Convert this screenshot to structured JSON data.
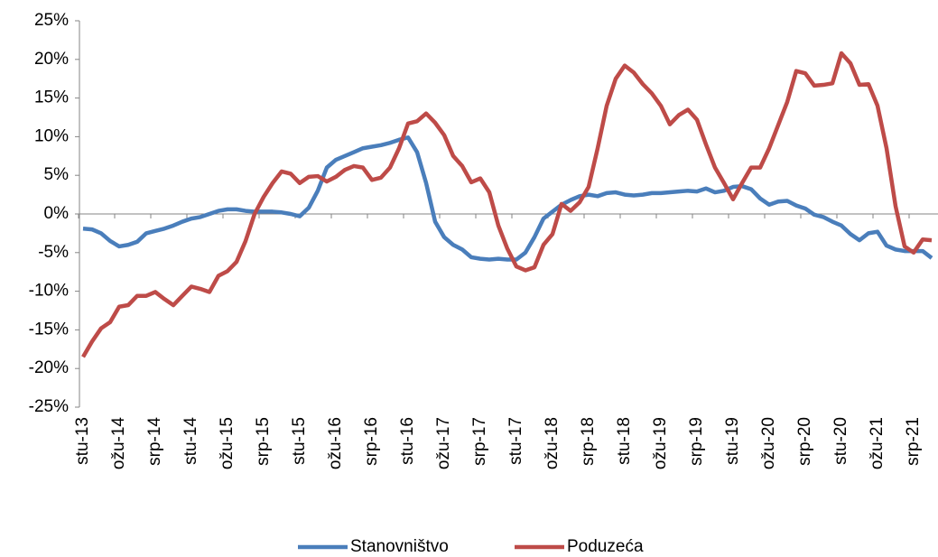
{
  "chart_data": {
    "type": "line",
    "categories": [
      "stu-13",
      null,
      null,
      null,
      "ožu-14",
      null,
      null,
      null,
      "srp-14",
      null,
      null,
      null,
      "stu-14",
      null,
      null,
      null,
      "ožu-15",
      null,
      null,
      null,
      "srp-15",
      null,
      null,
      null,
      "stu-15",
      null,
      null,
      null,
      "ožu-16",
      null,
      null,
      null,
      "srp-16",
      null,
      null,
      null,
      "stu-16",
      null,
      null,
      null,
      "ožu-17",
      null,
      null,
      null,
      "srp-17",
      null,
      null,
      null,
      "stu-17",
      null,
      null,
      null,
      "ožu-18",
      null,
      null,
      null,
      "srp-18",
      null,
      null,
      null,
      "stu-18",
      null,
      null,
      null,
      "ožu-19",
      null,
      null,
      null,
      "srp-19",
      null,
      null,
      null,
      "stu-19",
      null,
      null,
      null,
      "ožu-20",
      null,
      null,
      null,
      "srp-20",
      null,
      null,
      null,
      "stu-20",
      null,
      null,
      null,
      "ožu-21",
      null,
      null,
      null,
      "srp-21",
      null,
      null
    ],
    "series": [
      {
        "name": "Stanovništvo",
        "color": "#4a7ebb",
        "values": [
          -1.9,
          -2.0,
          -2.5,
          -3.5,
          -4.2,
          -4.0,
          -3.6,
          -2.5,
          -2.2,
          -1.9,
          -1.5,
          -1.0,
          -0.6,
          -0.4,
          0.0,
          0.4,
          0.6,
          0.6,
          0.4,
          0.3,
          0.3,
          0.3,
          0.2,
          0.0,
          -0.3,
          0.8,
          3.0,
          6.0,
          7.0,
          7.5,
          8.0,
          8.5,
          8.7,
          8.9,
          9.2,
          9.6,
          9.9,
          8.0,
          4.0,
          -1.0,
          -3.0,
          -4.0,
          -4.6,
          -5.6,
          -5.8,
          -5.9,
          -5.8,
          -5.9,
          -5.9,
          -5.0,
          -3.0,
          -0.6,
          0.3,
          1.2,
          1.8,
          2.3,
          2.5,
          2.3,
          2.7,
          2.8,
          2.5,
          2.4,
          2.5,
          2.7,
          2.7,
          2.8,
          2.9,
          3.0,
          2.9,
          3.3,
          2.8,
          3.0,
          3.5,
          3.6,
          3.2,
          2.0,
          1.2,
          1.6,
          1.7,
          1.1,
          0.7,
          -0.1,
          -0.4,
          -1.0,
          -1.5,
          -2.6,
          -3.4,
          -2.5,
          -2.3,
          -4.1,
          -4.6,
          -4.8,
          -4.8,
          -4.8,
          -5.7
        ]
      },
      {
        "name": "Poduzeća",
        "color": "#be4b48",
        "values": [
          -18.5,
          -16.5,
          -14.8,
          -14.0,
          -12.0,
          -11.8,
          -10.6,
          -10.6,
          -10.1,
          -11.0,
          -11.8,
          -10.6,
          -9.4,
          -9.7,
          -10.1,
          -8.0,
          -7.4,
          -6.2,
          -3.5,
          0.0,
          2.2,
          4.0,
          5.5,
          5.2,
          4.0,
          4.8,
          4.9,
          4.2,
          4.8,
          5.7,
          6.2,
          6.0,
          4.4,
          4.7,
          6.0,
          8.5,
          11.7,
          12.0,
          13.0,
          11.8,
          10.2,
          7.5,
          6.2,
          4.1,
          4.6,
          2.8,
          -1.5,
          -4.5,
          -6.8,
          -7.3,
          -6.9,
          -4.0,
          -2.6,
          1.3,
          0.4,
          1.5,
          3.5,
          8.5,
          14.0,
          17.5,
          19.2,
          18.3,
          16.8,
          15.6,
          14.0,
          11.6,
          12.8,
          13.5,
          12.2,
          9.0,
          6.0,
          4.0,
          1.9,
          4.0,
          6.0,
          6.0,
          8.5,
          11.5,
          14.5,
          18.5,
          18.2,
          16.6,
          16.7,
          16.9,
          20.8,
          19.5,
          16.7,
          16.8,
          14.0,
          8.5,
          1.0,
          -4.2,
          -5.0,
          -3.3,
          -3.4
        ]
      }
    ],
    "ylim": [
      -25,
      25
    ],
    "yticks": [
      {
        "value": -25,
        "label": "-25%"
      },
      {
        "value": -20,
        "label": "-20%"
      },
      {
        "value": -15,
        "label": "-15%"
      },
      {
        "value": -10,
        "label": "-10%"
      },
      {
        "value": -5,
        "label": "-5%"
      },
      {
        "value": 0,
        "label": "0%"
      },
      {
        "value": 5,
        "label": "5%"
      },
      {
        "value": 10,
        "label": "10%"
      },
      {
        "value": 15,
        "label": "15%"
      },
      {
        "value": 20,
        "label": "20%"
      },
      {
        "value": 25,
        "label": "25%"
      }
    ],
    "grid": false,
    "legend": "bottom"
  }
}
